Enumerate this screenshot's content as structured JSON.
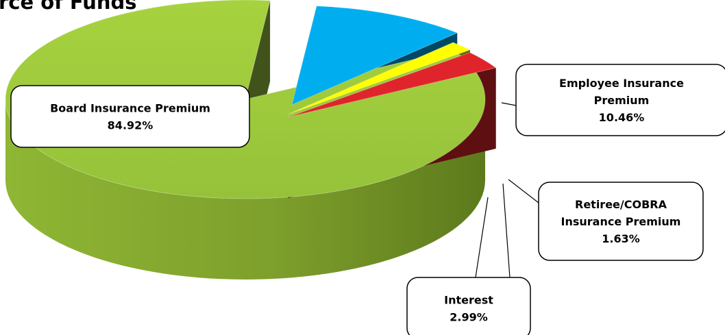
{
  "chart_data": {
    "type": "pie",
    "title": "rce of Funds",
    "slices": [
      {
        "label": "Board Insurance Premium",
        "value": 84.92,
        "percent_label": "84.92%",
        "color": "#9BC53D"
      },
      {
        "label": "Employee Insurance Premium",
        "value": 10.46,
        "percent_label": "10.46%",
        "color": "#00AEEF"
      },
      {
        "label": "Retiree/COBRA Insurance Premium",
        "value": 1.63,
        "percent_label": "1.63%",
        "color": "#FFFF00"
      },
      {
        "label": "Interest",
        "value": 2.99,
        "percent_label": "2.99%",
        "color": "#E0242C"
      }
    ],
    "style": "3d-exploded",
    "legend": "none"
  }
}
